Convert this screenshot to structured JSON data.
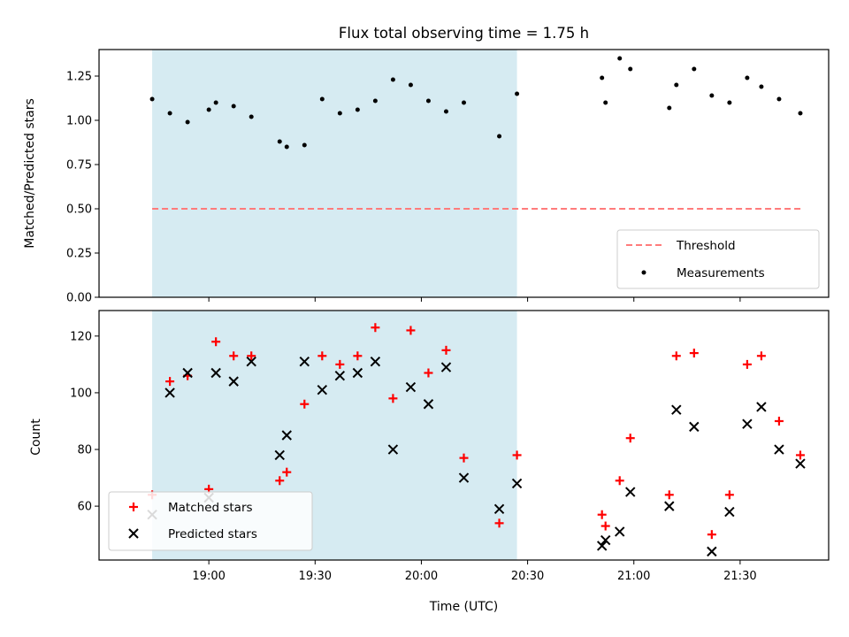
{
  "chart_data": [
    {
      "type": "scatter",
      "title": "Flux total observing time = 1.75 h",
      "xlabel": "",
      "ylabel": "Matched/Predicted stars",
      "ylim": [
        0,
        1.4
      ],
      "yticks": [
        "0.00",
        "0.25",
        "0.50",
        "0.75",
        "1.00",
        "1.25"
      ],
      "xlim": [
        "18:29",
        "21:55"
      ],
      "x_unit": "time (UTC, HH:MM)",
      "shaded_region": {
        "from": "18:44",
        "to": "20:27",
        "color": "#add8e6"
      },
      "threshold": {
        "name": "Threshold",
        "value": 0.5,
        "from": "18:44",
        "to": "21:48",
        "color": "#ff7b7b",
        "style": "dashed"
      },
      "series": [
        {
          "name": "Measurements",
          "color": "#000000",
          "marker": "dot",
          "points": [
            [
              "18:44",
              1.12
            ],
            [
              "18:49",
              1.04
            ],
            [
              "18:54",
              0.99
            ],
            [
              "19:00",
              1.06
            ],
            [
              "19:02",
              1.1
            ],
            [
              "19:07",
              1.08
            ],
            [
              "19:12",
              1.02
            ],
            [
              "19:20",
              0.88
            ],
            [
              "19:22",
              0.85
            ],
            [
              "19:27",
              0.86
            ],
            [
              "19:32",
              1.12
            ],
            [
              "19:37",
              1.04
            ],
            [
              "19:42",
              1.06
            ],
            [
              "19:47",
              1.11
            ],
            [
              "19:52",
              1.23
            ],
            [
              "19:57",
              1.2
            ],
            [
              "20:02",
              1.11
            ],
            [
              "20:07",
              1.05
            ],
            [
              "20:12",
              1.1
            ],
            [
              "20:22",
              0.91
            ],
            [
              "20:27",
              1.15
            ],
            [
              "20:51",
              1.24
            ],
            [
              "20:52",
              1.1
            ],
            [
              "20:56",
              1.35
            ],
            [
              "20:59",
              1.29
            ],
            [
              "21:10",
              1.07
            ],
            [
              "21:12",
              1.2
            ],
            [
              "21:17",
              1.29
            ],
            [
              "21:22",
              1.14
            ],
            [
              "21:27",
              1.1
            ],
            [
              "21:32",
              1.24
            ],
            [
              "21:36",
              1.19
            ],
            [
              "21:41",
              1.12
            ],
            [
              "21:47",
              1.04
            ]
          ]
        }
      ],
      "legend": {
        "placement": "lower-right",
        "entries": [
          "Threshold",
          "Measurements"
        ]
      }
    },
    {
      "type": "scatter",
      "title": "",
      "xlabel": "Time (UTC)",
      "ylabel": "Count",
      "ylim": [
        41,
        129
      ],
      "yticks": [
        "60",
        "80",
        "100",
        "120"
      ],
      "xlim": [
        "18:29",
        "21:55"
      ],
      "xticks": [
        "19:00",
        "19:30",
        "20:00",
        "20:30",
        "21:00",
        "21:30"
      ],
      "shaded_region": {
        "from": "18:44",
        "to": "20:27",
        "color": "#add8e6"
      },
      "series": [
        {
          "name": "Matched stars",
          "color": "#ff0000",
          "marker": "plus",
          "points": [
            [
              "18:44",
              64
            ],
            [
              "18:49",
              104
            ],
            [
              "18:54",
              106
            ],
            [
              "19:00",
              66
            ],
            [
              "19:02",
              118
            ],
            [
              "19:07",
              113
            ],
            [
              "19:12",
              113
            ],
            [
              "19:20",
              69
            ],
            [
              "19:22",
              72
            ],
            [
              "19:27",
              96
            ],
            [
              "19:32",
              113
            ],
            [
              "19:37",
              110
            ],
            [
              "19:42",
              113
            ],
            [
              "19:47",
              123
            ],
            [
              "19:52",
              98
            ],
            [
              "19:57",
              122
            ],
            [
              "20:02",
              107
            ],
            [
              "20:07",
              115
            ],
            [
              "20:12",
              77
            ],
            [
              "20:22",
              54
            ],
            [
              "20:27",
              78
            ],
            [
              "20:51",
              57
            ],
            [
              "20:52",
              53
            ],
            [
              "20:56",
              69
            ],
            [
              "20:59",
              84
            ],
            [
              "21:10",
              64
            ],
            [
              "21:12",
              113
            ],
            [
              "21:17",
              114
            ],
            [
              "21:22",
              50
            ],
            [
              "21:27",
              64
            ],
            [
              "21:32",
              110
            ],
            [
              "21:36",
              113
            ],
            [
              "21:41",
              90
            ],
            [
              "21:47",
              78
            ]
          ]
        },
        {
          "name": "Predicted stars",
          "color": "#000000",
          "marker": "x",
          "points": [
            [
              "18:44",
              57
            ],
            [
              "18:49",
              100
            ],
            [
              "18:54",
              107
            ],
            [
              "19:00",
              63
            ],
            [
              "19:02",
              107
            ],
            [
              "19:07",
              104
            ],
            [
              "19:12",
              111
            ],
            [
              "19:20",
              78
            ],
            [
              "19:22",
              85
            ],
            [
              "19:27",
              111
            ],
            [
              "19:32",
              101
            ],
            [
              "19:37",
              106
            ],
            [
              "19:42",
              107
            ],
            [
              "19:47",
              111
            ],
            [
              "19:52",
              80
            ],
            [
              "19:57",
              102
            ],
            [
              "20:02",
              96
            ],
            [
              "20:07",
              109
            ],
            [
              "20:12",
              70
            ],
            [
              "20:22",
              59
            ],
            [
              "20:27",
              68
            ],
            [
              "20:51",
              46
            ],
            [
              "20:52",
              48
            ],
            [
              "20:56",
              51
            ],
            [
              "20:59",
              65
            ],
            [
              "21:10",
              60
            ],
            [
              "21:12",
              94
            ],
            [
              "21:17",
              88
            ],
            [
              "21:22",
              44
            ],
            [
              "21:27",
              58
            ],
            [
              "21:32",
              89
            ],
            [
              "21:36",
              95
            ],
            [
              "21:41",
              80
            ],
            [
              "21:47",
              75
            ]
          ]
        }
      ],
      "legend": {
        "placement": "lower-left",
        "entries": [
          "Matched stars",
          "Predicted stars"
        ]
      }
    }
  ]
}
